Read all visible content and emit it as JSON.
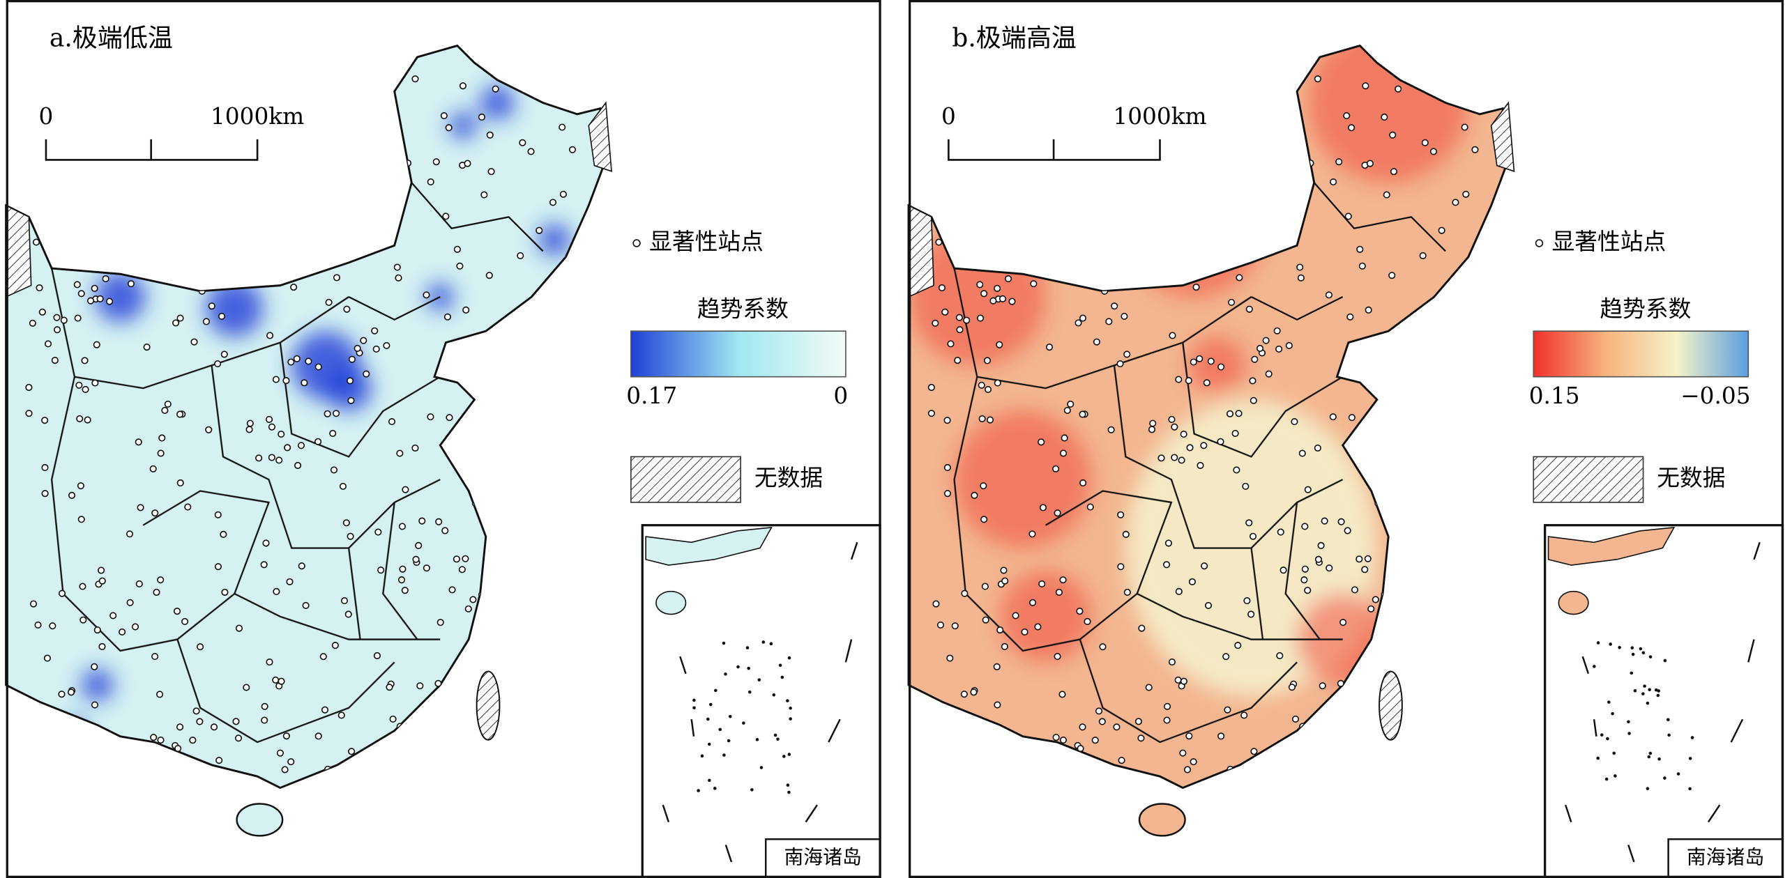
{
  "panels": [
    {
      "title": "a.极端低温",
      "scale_bar": {
        "start": "0",
        "end": "1000km"
      },
      "legend": {
        "station": "显著性站点",
        "colorbar_title": "趋势系数",
        "colorbar_colors": [
          "#1f3fd8",
          "#9fe8f0",
          "#f4fbf6"
        ],
        "colorbar_left": "0.17",
        "colorbar_right": "0",
        "no_data": "无数据"
      },
      "inset_label": "南海诸岛"
    },
    {
      "title": "b.极端高温",
      "scale_bar": {
        "start": "0",
        "end": "1000km"
      },
      "legend": {
        "station": "显著性站点",
        "colorbar_title": "趋势系数",
        "colorbar_colors": [
          "#f0302a",
          "#f7b27c",
          "#f6f3c8",
          "#5b9ee0"
        ],
        "colorbar_left": "0.15",
        "colorbar_right": "−0.05",
        "no_data": "无数据"
      },
      "inset_label": "南海诸岛"
    }
  ]
}
